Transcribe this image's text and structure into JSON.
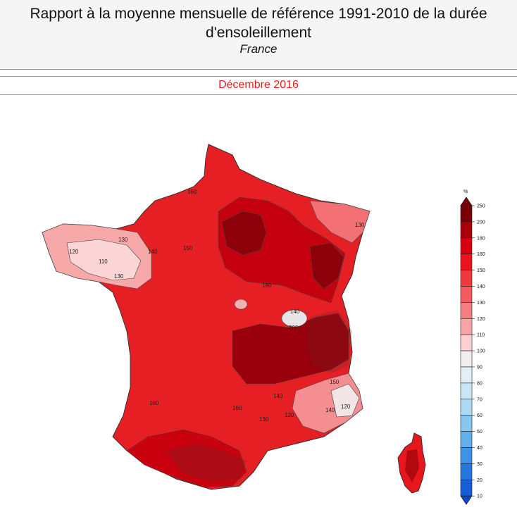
{
  "header": {
    "title": "Rapport à la moyenne mensuelle de référence 1991-2010 de la durée d'ensoleillement",
    "subtitle": "France"
  },
  "period": "Décembre 2016",
  "legend": {
    "unit": "%",
    "ticks": [
      "250",
      "200",
      "180",
      "160",
      "150",
      "140",
      "130",
      "120",
      "110",
      "100",
      "90",
      "80",
      "70",
      "60",
      "50",
      "40",
      "30",
      "20",
      "10"
    ],
    "colors": [
      "#7a0008",
      "#a9000c",
      "#d8000f",
      "#e8141c",
      "#ee3a3f",
      "#f25c60",
      "#f57e80",
      "#f9a5a7",
      "#fccfd0",
      "#f2eef0",
      "#e4eef7",
      "#c9e6f6",
      "#abdbf4",
      "#86c8f0",
      "#5fb0ec",
      "#3e93e6",
      "#2477df",
      "#145ed6",
      "#0b45c8"
    ]
  },
  "contour_labels": [
    "160",
    "140",
    "130",
    "120",
    "110",
    "130",
    "150",
    "180",
    "200",
    "140",
    "160",
    "130",
    "120",
    "140",
    "150",
    "160",
    "130",
    "120",
    "140"
  ]
}
